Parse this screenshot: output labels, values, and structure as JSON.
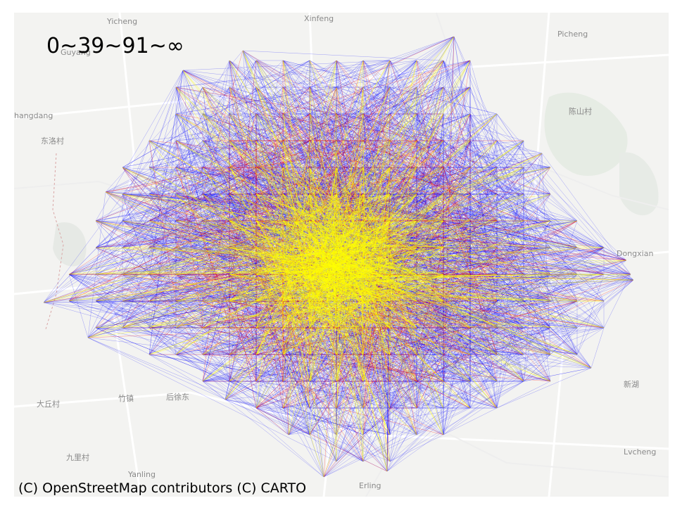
{
  "legend": {
    "title": "0~39~91~∞",
    "colors": [
      "#0000ff",
      "#ff0000",
      "#ffff00"
    ]
  },
  "attribution": "(C) OpenStreetMap contributors (C) CARTO",
  "place_labels": [
    {
      "text": "Yicheng"
    },
    {
      "text": "Xinfeng"
    },
    {
      "text": "Picheng"
    },
    {
      "text": "Guyang"
    },
    {
      "text": "hangdang"
    },
    {
      "text": "东洛村"
    },
    {
      "text": "陈山村"
    },
    {
      "text": "Dongxian"
    },
    {
      "text": "大丘村"
    },
    {
      "text": "竹镇"
    },
    {
      "text": "后徐东"
    },
    {
      "text": "九里村"
    },
    {
      "text": "Yanling"
    },
    {
      "text": "Erling"
    },
    {
      "text": "新湖"
    },
    {
      "text": "Lvcheng"
    }
  ],
  "map_data": {
    "type": "od-flow-network",
    "basemap": "CARTO light",
    "color_breaks": [
      0,
      39,
      91,
      "∞"
    ]
  }
}
